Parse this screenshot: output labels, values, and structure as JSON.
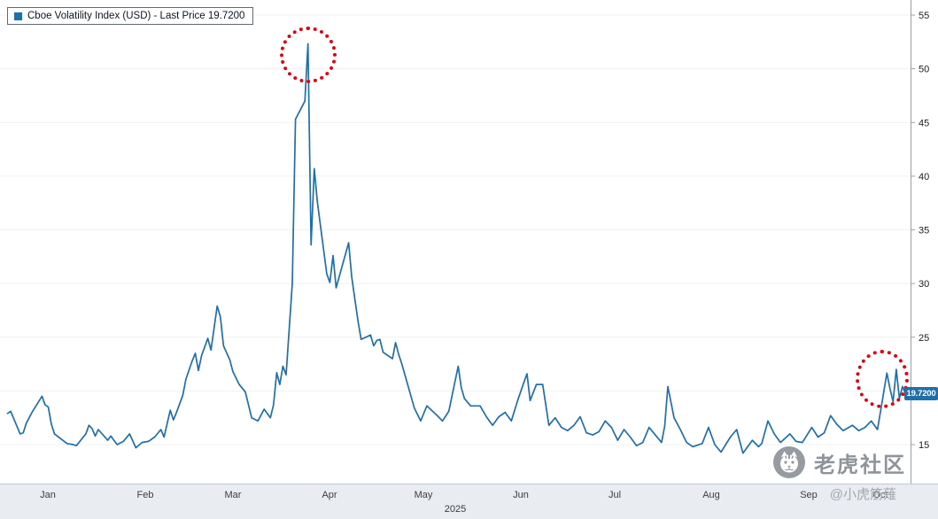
{
  "legend": {
    "label": "Cboe Volatility Index (USD) - Last Price 19.7200",
    "marker_color": "#1f6fad"
  },
  "price_tag": {
    "value": "19.7200",
    "bg": "#1f6fad"
  },
  "axis": {
    "yticks": [
      15,
      20,
      25,
      30,
      35,
      40,
      45,
      50,
      55
    ],
    "months": [
      "Jan",
      "Feb",
      "Mar",
      "Apr",
      "May",
      "Jun",
      "Jul",
      "Aug",
      "Sep",
      "Oct"
    ],
    "year": "2025"
  },
  "watermark": {
    "brand": "老虎社区",
    "handle": "@小虎筋薙",
    "logo": "tiger-logo-icon"
  },
  "annotations": [
    {
      "type": "dotted-circle",
      "color": "#e3000f",
      "target": "april-volatility-peak"
    },
    {
      "type": "dotted-circle",
      "color": "#e3000f",
      "target": "latest-price-area"
    }
  ],
  "chart_data": {
    "type": "line",
    "title": "Cboe Volatility Index (USD) - Last Price 19.7200",
    "series_name": "Cboe Volatility Index (USD)",
    "last_price": "19.7200",
    "last_value": 19.72,
    "line_color": "#1f6fad",
    "ylim": [
      13,
      56
    ],
    "yticks": [
      15,
      20,
      25,
      30,
      35,
      40,
      45,
      50,
      55
    ],
    "x_months": [
      "Jan",
      "Feb",
      "Mar",
      "Apr",
      "May",
      "Jun",
      "Jul",
      "Aug",
      "Sep",
      "Oct"
    ],
    "year": "2025",
    "x_note": "x values are approximate day-of-year 2025, y values are index level",
    "legend_position": "top-left",
    "grid": "faint-horizontal",
    "points": [
      [
        2,
        17.9
      ],
      [
        3,
        18.1
      ],
      [
        6,
        16.0
      ],
      [
        7,
        16.1
      ],
      [
        8,
        17.0
      ],
      [
        10,
        18.1
      ],
      [
        13,
        19.5
      ],
      [
        14,
        18.7
      ],
      [
        15,
        18.5
      ],
      [
        16,
        16.9
      ],
      [
        17,
        16.0
      ],
      [
        21,
        15.1
      ],
      [
        23,
        15.0
      ],
      [
        24,
        14.9
      ],
      [
        27,
        16.0
      ],
      [
        28,
        16.8
      ],
      [
        29,
        16.5
      ],
      [
        30,
        15.8
      ],
      [
        31,
        16.4
      ],
      [
        34,
        15.4
      ],
      [
        35,
        15.8
      ],
      [
        37,
        15.0
      ],
      [
        39,
        15.3
      ],
      [
        41,
        16.0
      ],
      [
        43,
        14.7
      ],
      [
        45,
        15.2
      ],
      [
        47,
        15.3
      ],
      [
        49,
        15.7
      ],
      [
        51,
        16.4
      ],
      [
        52,
        15.7
      ],
      [
        54,
        18.2
      ],
      [
        55,
        17.3
      ],
      [
        56,
        18.0
      ],
      [
        58,
        19.6
      ],
      [
        59,
        21.1
      ],
      [
        61,
        22.8
      ],
      [
        62,
        23.5
      ],
      [
        63,
        21.9
      ],
      [
        64,
        23.3
      ],
      [
        66,
        24.9
      ],
      [
        67,
        23.8
      ],
      [
        69,
        27.9
      ],
      [
        70,
        26.9
      ],
      [
        71,
        24.2
      ],
      [
        73,
        22.9
      ],
      [
        74,
        21.8
      ],
      [
        76,
        20.6
      ],
      [
        78,
        19.9
      ],
      [
        80,
        17.5
      ],
      [
        82,
        17.2
      ],
      [
        84,
        18.3
      ],
      [
        86,
        17.5
      ],
      [
        87,
        18.7
      ],
      [
        88,
        21.7
      ],
      [
        89,
        20.6
      ],
      [
        90,
        22.3
      ],
      [
        91,
        21.5
      ],
      [
        93,
        30.0
      ],
      [
        94,
        45.3
      ],
      [
        97,
        46.98
      ],
      [
        98,
        52.33
      ],
      [
        99,
        33.6
      ],
      [
        100,
        40.7
      ],
      [
        101,
        37.6
      ],
      [
        104,
        30.9
      ],
      [
        105,
        30.1
      ],
      [
        106,
        32.6
      ],
      [
        107,
        29.6
      ],
      [
        111,
        33.8
      ],
      [
        112,
        30.6
      ],
      [
        113,
        28.5
      ],
      [
        114,
        26.5
      ],
      [
        115,
        24.8
      ],
      [
        118,
        25.2
      ],
      [
        119,
        24.2
      ],
      [
        120,
        24.7
      ],
      [
        121,
        24.8
      ],
      [
        122,
        23.6
      ],
      [
        125,
        23.0
      ],
      [
        126,
        24.5
      ],
      [
        127,
        23.4
      ],
      [
        128,
        22.5
      ],
      [
        132,
        18.4
      ],
      [
        134,
        17.2
      ],
      [
        136,
        18.6
      ],
      [
        139,
        17.8
      ],
      [
        141,
        17.2
      ],
      [
        143,
        18.1
      ],
      [
        146,
        22.3
      ],
      [
        147,
        20.3
      ],
      [
        148,
        19.3
      ],
      [
        150,
        18.6
      ],
      [
        153,
        18.6
      ],
      [
        155,
        17.6
      ],
      [
        157,
        16.8
      ],
      [
        159,
        17.6
      ],
      [
        161,
        18.0
      ],
      [
        163,
        17.2
      ],
      [
        165,
        19.1
      ],
      [
        167,
        20.8
      ],
      [
        168,
        21.6
      ],
      [
        169,
        19.1
      ],
      [
        171,
        20.6
      ],
      [
        173,
        20.6
      ],
      [
        175,
        16.8
      ],
      [
        177,
        17.5
      ],
      [
        179,
        16.6
      ],
      [
        181,
        16.3
      ],
      [
        183,
        16.8
      ],
      [
        185,
        17.6
      ],
      [
        187,
        16.1
      ],
      [
        189,
        15.9
      ],
      [
        191,
        16.2
      ],
      [
        193,
        17.2
      ],
      [
        195,
        16.6
      ],
      [
        197,
        15.4
      ],
      [
        199,
        16.4
      ],
      [
        201,
        15.7
      ],
      [
        203,
        14.9
      ],
      [
        205,
        15.2
      ],
      [
        207,
        16.6
      ],
      [
        209,
        15.9
      ],
      [
        211,
        15.2
      ],
      [
        212,
        16.7
      ],
      [
        213,
        20.4
      ],
      [
        215,
        17.5
      ],
      [
        217,
        16.4
      ],
      [
        219,
        15.2
      ],
      [
        221,
        14.8
      ],
      [
        224,
        15.1
      ],
      [
        226,
        16.6
      ],
      [
        228,
        15.0
      ],
      [
        230,
        14.3
      ],
      [
        233,
        15.7
      ],
      [
        235,
        16.4
      ],
      [
        237,
        14.2
      ],
      [
        240,
        15.4
      ],
      [
        242,
        14.8
      ],
      [
        243,
        15.1
      ],
      [
        245,
        17.2
      ],
      [
        247,
        16.0
      ],
      [
        249,
        15.2
      ],
      [
        252,
        16.0
      ],
      [
        254,
        15.3
      ],
      [
        256,
        15.2
      ],
      [
        259,
        16.6
      ],
      [
        261,
        15.7
      ],
      [
        263,
        16.1
      ],
      [
        265,
        17.7
      ],
      [
        267,
        16.9
      ],
      [
        269,
        16.3
      ],
      [
        272,
        16.8
      ],
      [
        274,
        16.3
      ],
      [
        276,
        16.6
      ],
      [
        278,
        17.2
      ],
      [
        280,
        16.4
      ],
      [
        283,
        21.66
      ],
      [
        284,
        20.2
      ],
      [
        285,
        19.0
      ],
      [
        286,
        22.0
      ],
      [
        287,
        19.3
      ],
      [
        288,
        20.4
      ],
      [
        289,
        19.72
      ]
    ]
  }
}
